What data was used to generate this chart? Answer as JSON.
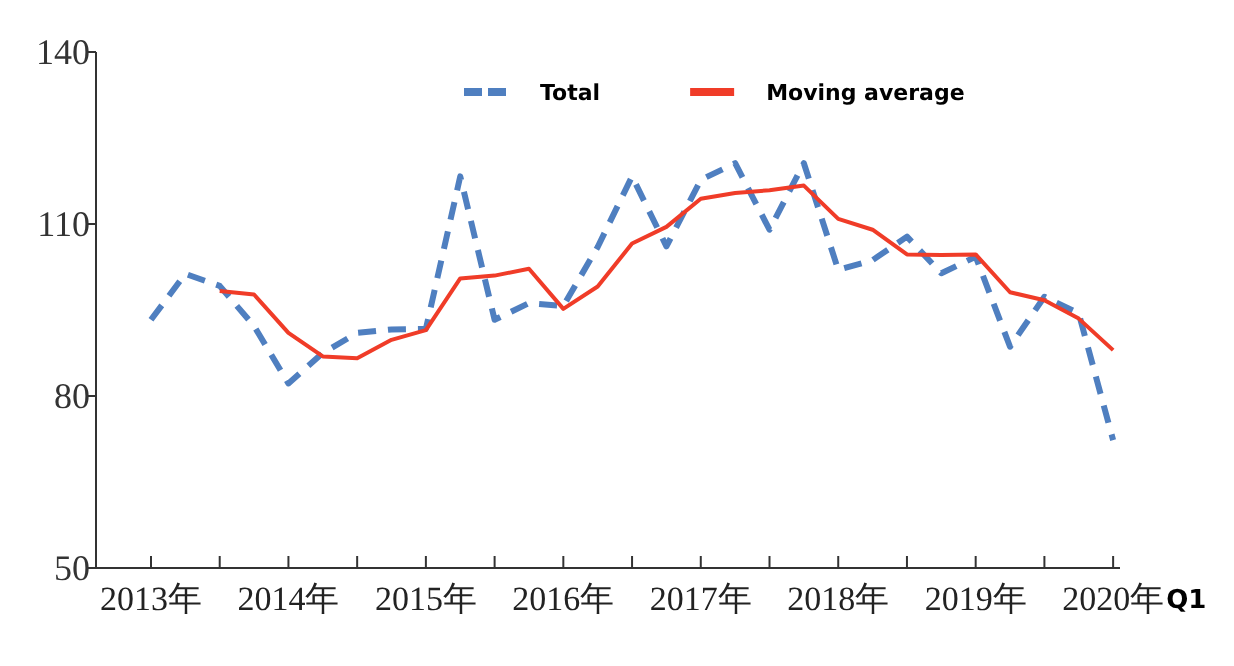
{
  "chart_data": {
    "type": "line",
    "x": [
      2013.0,
      2013.25,
      2013.5,
      2013.75,
      2014.0,
      2014.25,
      2014.5,
      2014.75,
      2015.0,
      2015.25,
      2015.5,
      2015.75,
      2016.0,
      2016.25,
      2016.5,
      2016.75,
      2017.0,
      2017.25,
      2017.5,
      2017.75,
      2018.0,
      2018.25,
      2018.5,
      2018.75,
      2019.0,
      2019.25,
      2019.5,
      2019.75,
      2020.0
    ],
    "series": [
      {
        "name": "Total",
        "color": "#4f7fc0",
        "line_style": "dashed",
        "values": [
          93.3,
          101.3,
          99.2,
          92.2,
          82.2,
          87.5,
          91.0,
          91.6,
          91.7,
          118.3,
          93.3,
          96.2,
          95.7,
          106.0,
          118.3,
          106.1,
          117.7,
          120.6,
          109.0,
          120.6,
          102.0,
          103.7,
          107.8,
          101.4,
          104.3,
          88.6,
          97.3,
          94.4,
          72.3
        ]
      },
      {
        "name": "Moving average",
        "color": "#f03c28",
        "line_style": "solid",
        "values": [
          null,
          null,
          98.3,
          97.7,
          91.0,
          86.9,
          86.6,
          89.8,
          91.5,
          100.5,
          101.0,
          102.2,
          95.2,
          99.1,
          106.6,
          109.5,
          114.4,
          115.4,
          115.9,
          116.7,
          110.9,
          109.0,
          104.7,
          104.6,
          104.7,
          98.1,
          96.7,
          93.5,
          88.0
        ]
      }
    ],
    "xlim": [
      2012.6,
      2020.05
    ],
    "xticks": [
      {
        "value": 2013,
        "label": "2013年"
      },
      {
        "value": 2013.5,
        "label": null
      },
      {
        "value": 2014,
        "label": "2014年"
      },
      {
        "value": 2014.5,
        "label": null
      },
      {
        "value": 2015,
        "label": "2015年"
      },
      {
        "value": 2015.5,
        "label": null
      },
      {
        "value": 2016,
        "label": "2016年"
      },
      {
        "value": 2016.5,
        "label": null
      },
      {
        "value": 2017,
        "label": "2017年"
      },
      {
        "value": 2017.5,
        "label": null
      },
      {
        "value": 2018,
        "label": "2018年"
      },
      {
        "value": 2018.5,
        "label": null
      },
      {
        "value": 2019,
        "label": "2019年"
      },
      {
        "value": 2019.5,
        "label": null
      },
      {
        "value": 2020,
        "label": "2020年"
      }
    ],
    "ylim": [
      50,
      140
    ],
    "yticks": [
      50,
      80,
      110,
      140
    ],
    "annotations": [
      "Q1"
    ],
    "legend": "top",
    "grid": false
  }
}
